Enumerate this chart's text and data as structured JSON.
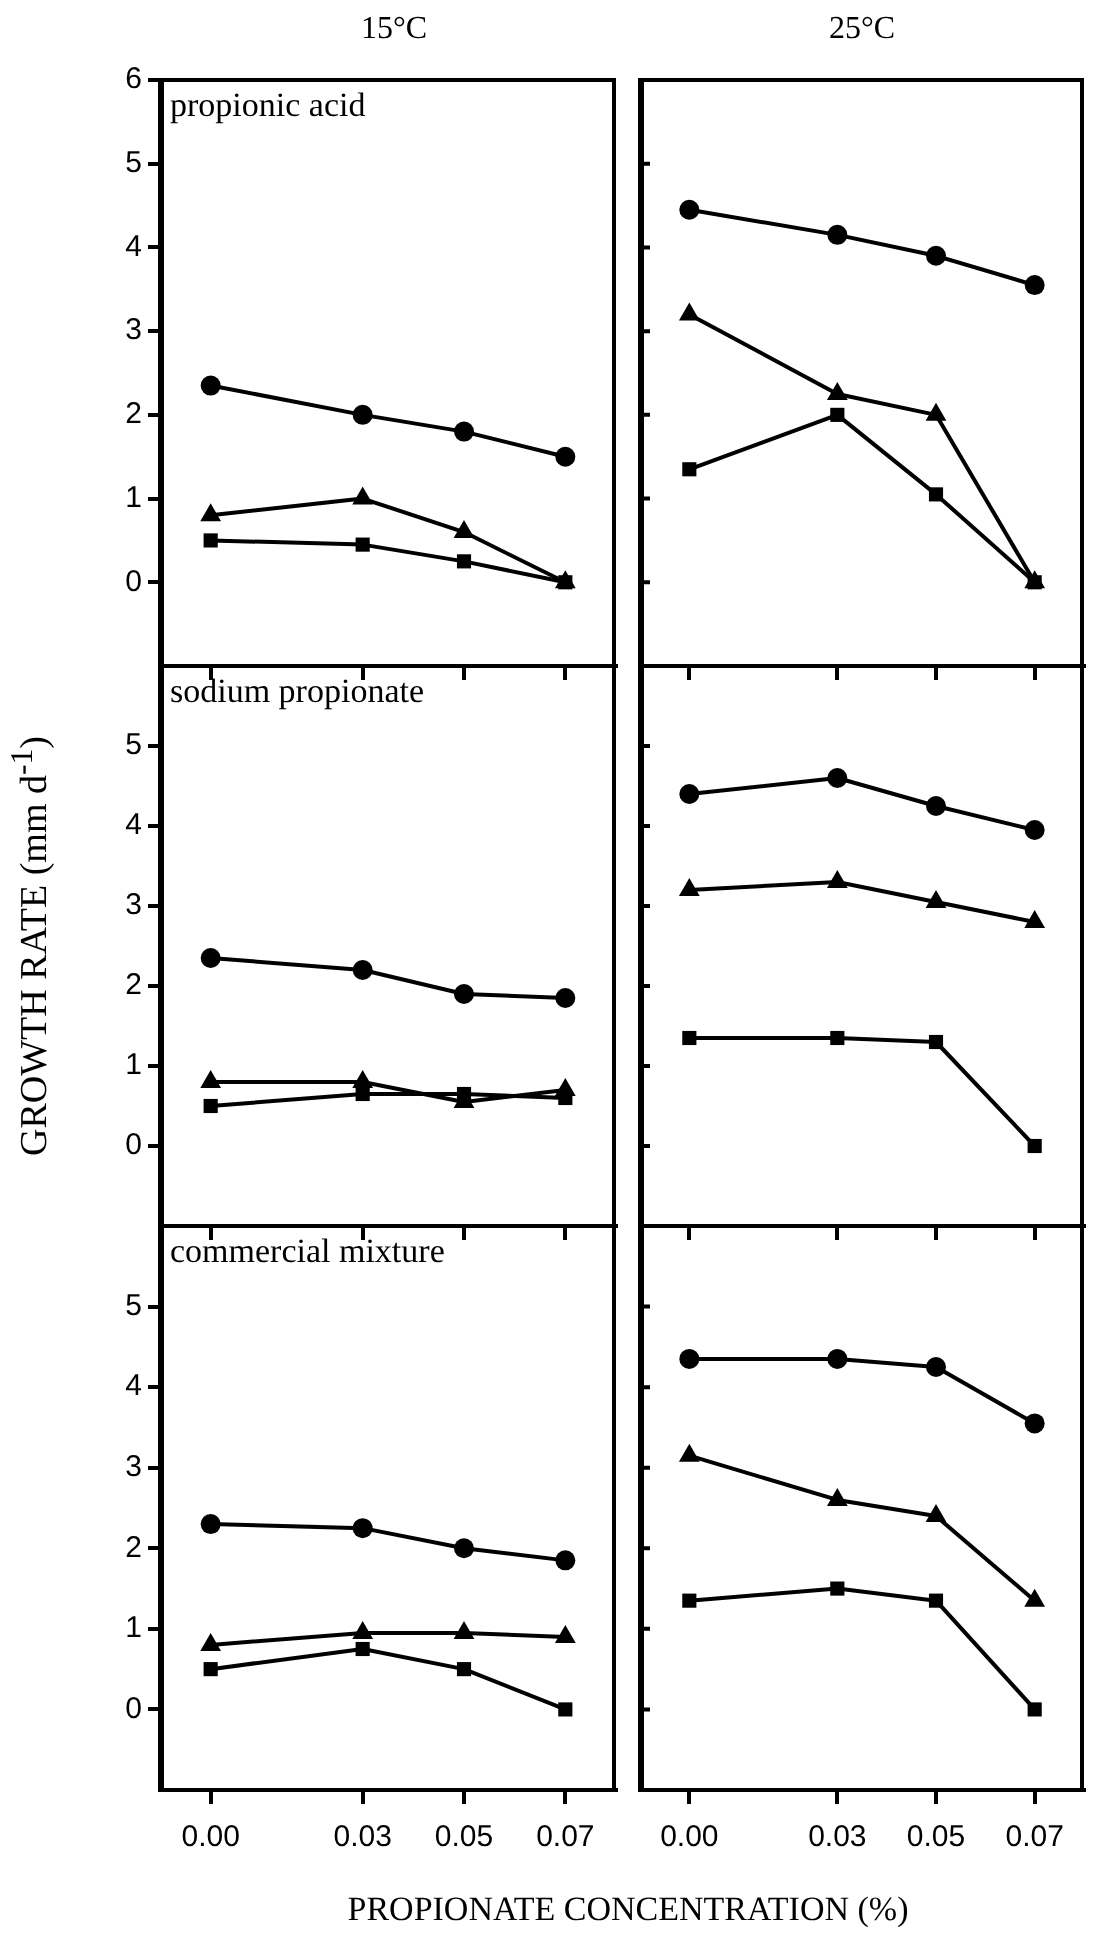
{
  "chart_data": [
    {
      "type": "line",
      "title": "15°C",
      "annotations": [
        "propionic acid"
      ],
      "x": [
        0,
        0.03,
        0.05,
        0.07
      ],
      "xlim": [
        -0.01,
        0.08
      ],
      "xticks": [
        {
          "value": 0,
          "label": null
        },
        {
          "value": 0.03,
          "label": null
        },
        {
          "value": 0.05,
          "label": null
        },
        {
          "value": 0.07,
          "label": null
        }
      ],
      "ylim": [
        -1,
        6
      ],
      "yticks": [
        0,
        1,
        2,
        3,
        4,
        5,
        6
      ],
      "tick_labels": "y",
      "series": [
        {
          "color": "#000000",
          "marker": "circle",
          "values": [
            2.35,
            2.0,
            1.8,
            1.5
          ]
        },
        {
          "color": "#000000",
          "marker": "triangle",
          "values": [
            0.8,
            1.0,
            0.6,
            0.0
          ]
        },
        {
          "color": "#000000",
          "marker": "square",
          "values": [
            0.5,
            0.45,
            0.25,
            0.0
          ]
        }
      ]
    },
    {
      "type": "line",
      "title": "25°C",
      "x": [
        0,
        0.03,
        0.05,
        0.07
      ],
      "xlim": [
        -0.01,
        0.08
      ],
      "xticks": [
        {
          "value": 0,
          "label": null
        },
        {
          "value": 0.03,
          "label": null
        },
        {
          "value": 0.05,
          "label": null
        },
        {
          "value": 0.07,
          "label": null
        }
      ],
      "ylim": [
        -1,
        6
      ],
      "yticks": [
        {
          "value": 0,
          "label": null
        },
        {
          "value": 1,
          "label": null
        },
        {
          "value": 2,
          "label": null
        },
        {
          "value": 3,
          "label": null
        },
        {
          "value": 4,
          "label": null
        },
        {
          "value": 5,
          "label": null
        }
      ],
      "tick_labels": false,
      "series": [
        {
          "color": "#000000",
          "marker": "circle",
          "values": [
            4.45,
            4.15,
            3.9,
            3.55
          ]
        },
        {
          "color": "#000000",
          "marker": "triangle",
          "values": [
            3.2,
            2.25,
            2.0,
            0.0
          ]
        },
        {
          "color": "#000000",
          "marker": "square",
          "values": [
            1.35,
            2.0,
            1.05,
            0.0
          ]
        }
      ]
    },
    {
      "type": "line",
      "ylabel": "GROWTH RATE (mm d$^{-1}$)",
      "annotations": [
        "sodium propionate"
      ],
      "x": [
        0,
        0.03,
        0.05,
        0.07
      ],
      "xlim": [
        -0.01,
        0.08
      ],
      "xticks": [
        {
          "value": 0,
          "label": null
        },
        {
          "value": 0.03,
          "label": null
        },
        {
          "value": 0.05,
          "label": null
        },
        {
          "value": 0.07,
          "label": null
        }
      ],
      "ylim": [
        -1,
        6
      ],
      "yticks": [
        0,
        1,
        2,
        3,
        4,
        5
      ],
      "tick_labels": "y",
      "series": [
        {
          "color": "#000000",
          "marker": "circle",
          "values": [
            2.35,
            2.2,
            1.9,
            1.85
          ]
        },
        {
          "color": "#000000",
          "marker": "triangle",
          "values": [
            0.8,
            0.8,
            0.55,
            0.7
          ]
        },
        {
          "color": "#000000",
          "marker": "square",
          "values": [
            0.5,
            0.65,
            0.65,
            0.6
          ]
        }
      ]
    },
    {
      "type": "line",
      "x": [
        0,
        0.03,
        0.05,
        0.07
      ],
      "xlim": [
        -0.01,
        0.08
      ],
      "xticks": [
        {
          "value": 0,
          "label": null
        },
        {
          "value": 0.03,
          "label": null
        },
        {
          "value": 0.05,
          "label": null
        },
        {
          "value": 0.07,
          "label": null
        }
      ],
      "ylim": [
        -1,
        6
      ],
      "yticks": [
        {
          "value": 0,
          "label": null
        },
        {
          "value": 1,
          "label": null
        },
        {
          "value": 2,
          "label": null
        },
        {
          "value": 3,
          "label": null
        },
        {
          "value": 4,
          "label": null
        },
        {
          "value": 5,
          "label": null
        }
      ],
      "tick_labels": false,
      "series": [
        {
          "color": "#000000",
          "marker": "circle",
          "values": [
            4.4,
            4.6,
            4.25,
            3.95
          ]
        },
        {
          "color": "#000000",
          "marker": "triangle",
          "values": [
            3.2,
            3.3,
            3.05,
            2.8
          ]
        },
        {
          "color": "#000000",
          "marker": "square",
          "values": [
            1.35,
            1.35,
            1.3,
            0.0
          ]
        }
      ]
    },
    {
      "type": "line",
      "xlabel": "PROPIONATE CONCENTRATION (%)",
      "annotations": [
        "commercial mixture"
      ],
      "x": [
        0,
        0.03,
        0.05,
        0.07
      ],
      "xlim": [
        -0.01,
        0.08
      ],
      "xticks": [
        {
          "value": 0,
          "label": "0.00"
        },
        {
          "value": 0.03,
          "label": "0.03"
        },
        {
          "value": 0.05,
          "label": "0.05"
        },
        {
          "value": 0.07,
          "label": "0.07"
        }
      ],
      "ylim": [
        -1,
        6
      ],
      "yticks": [
        0,
        1,
        2,
        3,
        4,
        5
      ],
      "series": [
        {
          "color": "#000000",
          "marker": "circle",
          "values": [
            2.3,
            2.25,
            2.0,
            1.85
          ]
        },
        {
          "color": "#000000",
          "marker": "triangle",
          "values": [
            0.8,
            0.95,
            0.95,
            0.9
          ]
        },
        {
          "color": "#000000",
          "marker": "square",
          "values": [
            0.5,
            0.75,
            0.5,
            0.0
          ]
        }
      ]
    },
    {
      "type": "line",
      "x": [
        0,
        0.03,
        0.05,
        0.07
      ],
      "xlim": [
        -0.01,
        0.08
      ],
      "xticks": [
        {
          "value": 0,
          "label": "0.00"
        },
        {
          "value": 0.03,
          "label": "0.03"
        },
        {
          "value": 0.05,
          "label": "0.05"
        },
        {
          "value": 0.07,
          "label": "0.07"
        }
      ],
      "ylim": [
        -1,
        6
      ],
      "yticks": [
        {
          "value": 0,
          "label": null
        },
        {
          "value": 1,
          "label": null
        },
        {
          "value": 2,
          "label": null
        },
        {
          "value": 3,
          "label": null
        },
        {
          "value": 4,
          "label": null
        },
        {
          "value": 5,
          "label": null
        }
      ],
      "tick_labels": "x",
      "series": [
        {
          "color": "#000000",
          "marker": "circle",
          "values": [
            4.35,
            4.35,
            4.25,
            3.55
          ]
        },
        {
          "color": "#000000",
          "marker": "triangle",
          "values": [
            3.15,
            2.6,
            2.4,
            1.35
          ]
        },
        {
          "color": "#000000",
          "marker": "square",
          "values": [
            1.35,
            1.5,
            1.35,
            0.0
          ]
        }
      ]
    }
  ]
}
